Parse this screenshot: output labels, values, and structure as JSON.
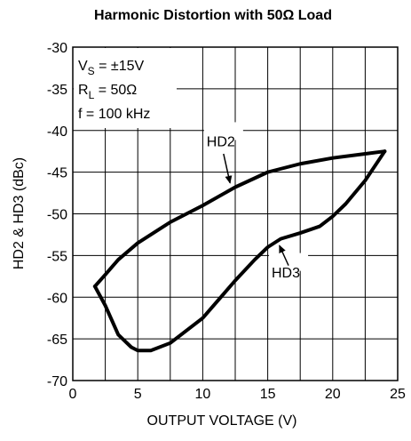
{
  "chart_data": {
    "type": "line",
    "title": "Harmonic Distortion with 50Ω Load",
    "x_label": "OUTPUT VOLTAGE (V)",
    "y_label": "HD2 & HD3 (dBc)",
    "xlim": [
      0,
      25
    ],
    "ylim": [
      -70,
      -30
    ],
    "xticks": [
      0,
      5,
      10,
      15,
      20,
      25
    ],
    "x_minor_grid": [
      2.5,
      7.5,
      12.5,
      17.5,
      22.5
    ],
    "yticks": [
      -70,
      -65,
      -60,
      -55,
      -50,
      -45,
      -40,
      -35,
      -30
    ],
    "grid": true,
    "annotations": [
      {
        "symbol": "V",
        "subscript": "S",
        "text": " = ±15V"
      },
      {
        "symbol": "R",
        "subscript": "L",
        "text": " = 50Ω"
      },
      {
        "symbol": "f",
        "subscript": "",
        "text": " = 100 kHz"
      }
    ],
    "series": [
      {
        "name": "HD2",
        "color": "#000000",
        "x": [
          1.7,
          2.5,
          3.5,
          5,
          7.5,
          10,
          12.5,
          15,
          17.5,
          20,
          22.5,
          24
        ],
        "values": [
          -58.7,
          -57.3,
          -55.5,
          -53.5,
          -51,
          -49,
          -46.8,
          -45,
          -44,
          -43.3,
          -42.8,
          -42.5
        ]
      },
      {
        "name": "HD3",
        "color": "#000000",
        "x": [
          1.7,
          2.5,
          3.5,
          4.5,
          5,
          6,
          7.5,
          10,
          12.5,
          14,
          15,
          16,
          17.5,
          19,
          20,
          21,
          22.5,
          24
        ],
        "values": [
          -58.7,
          -61,
          -64.5,
          -66,
          -66.4,
          -66.4,
          -65.5,
          -62.5,
          -58,
          -55.5,
          -54,
          -53,
          -52.3,
          -51.5,
          -50.3,
          -48.8,
          -46,
          -42.5
        ]
      }
    ]
  }
}
